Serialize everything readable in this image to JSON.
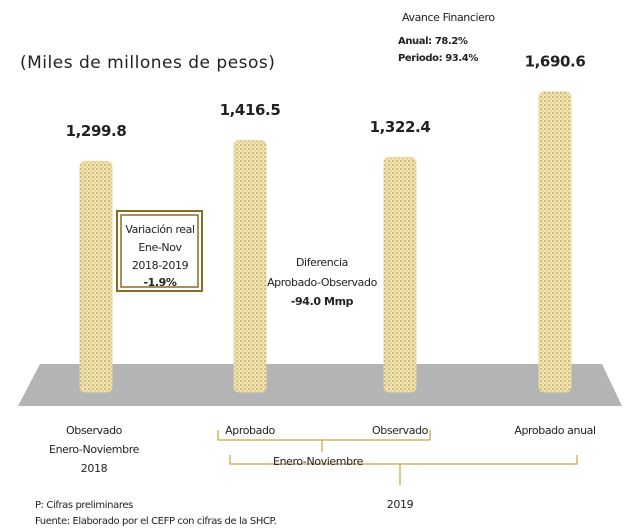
{
  "chart_data": {
    "type": "bar",
    "subtitle": "(Miles de millones de pesos)",
    "categories": [
      [
        "Observado",
        "Enero-Noviembre",
        "2018"
      ],
      [
        "Aprobado"
      ],
      [
        "Observado"
      ],
      [
        "Aprobado anual"
      ]
    ],
    "values": [
      1299.8,
      1416.5,
      1322.4,
      1690.6
    ],
    "value_labels": [
      "1,299.8",
      "1,416.5",
      "1,322.4",
      "1,690.6"
    ],
    "color": "#e8d79c",
    "group_labels": [
      "Enero-Noviembre",
      "2019"
    ],
    "annotations": {
      "variacion": [
        "Variación real",
        "Ene-Nov",
        "2018-2019",
        "-1.9%"
      ],
      "diferencia": [
        "Diferencia",
        "Aprobado-Observado",
        "-94.0 Mmp"
      ],
      "avance": [
        "Avance Financiero",
        "Anual: 78.2%",
        "Periodo: 93.4%"
      ]
    },
    "notes": [
      "P: Cifras preliminares",
      "Fuente: Elaborado por el CEFP con cifras de la SHCP."
    ]
  }
}
